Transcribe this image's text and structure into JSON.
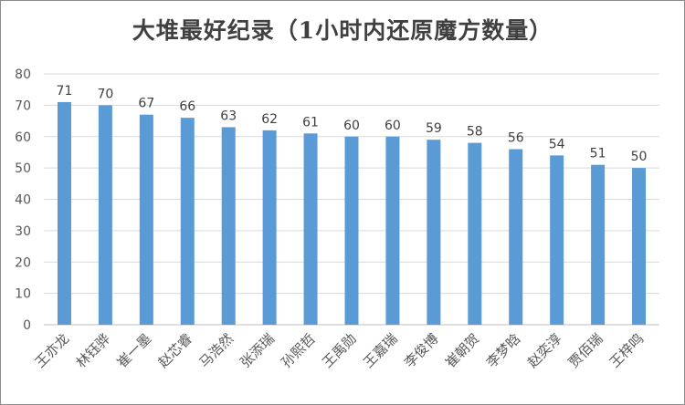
{
  "chart_data": {
    "type": "bar",
    "title": "大堆最好纪录（1小时内还原魔方数量）",
    "xlabel": "",
    "ylabel": "",
    "categories": [
      "王亦龙",
      "林钰骅",
      "崔一墨",
      "赵芯睿",
      "马浩然",
      "张添瑞",
      "孙熙哲",
      "王禹勋",
      "王嘉瑞",
      "李俊博",
      "崔朝贺",
      "李梦晗",
      "赵奕淳",
      "贾佰瑞",
      "王梓鸣"
    ],
    "series": [
      {
        "values": [
          71,
          70,
          67,
          66,
          63,
          62,
          61,
          60,
          60,
          59,
          58,
          56,
          54,
          51,
          50
        ]
      }
    ],
    "ylim": [
      0,
      80
    ],
    "yticks": [
      0,
      10,
      20,
      30,
      40,
      50,
      60,
      70,
      80
    ],
    "grid": true,
    "data_labels": true,
    "colors": {
      "bar": "#5b9bd5",
      "grid": "#d9d9d9"
    }
  }
}
